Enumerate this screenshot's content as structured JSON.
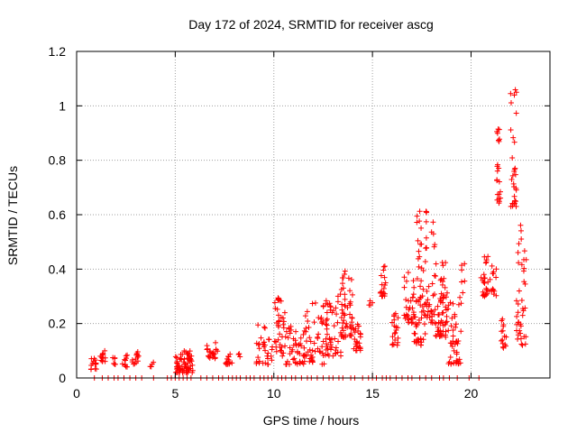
{
  "chart_data": {
    "type": "scatter",
    "title": "Day 172 of 2024, SRMTID for receiver ascg",
    "xlabel": "GPS time / hours",
    "ylabel": "SRMTID / TECUs",
    "xlim": [
      0,
      24
    ],
    "ylim": [
      0,
      1.2
    ],
    "xticks": [
      0,
      5,
      10,
      15,
      20
    ],
    "yticks": [
      0,
      0.2,
      0.4,
      0.6,
      0.8,
      1.0,
      1.2
    ],
    "xtick_labels": [
      "0",
      "5",
      "10",
      "15",
      "20"
    ],
    "ytick_labels": [
      "0",
      "0.2",
      "0.4",
      "0.6",
      "0.8",
      "1",
      "1.2"
    ],
    "grid": true,
    "marker": "+",
    "series": [
      {
        "name": "SRMTID",
        "color": "#ff0000",
        "clusters": [
          {
            "x": [
              0.7,
              1.0
            ],
            "y": [
              0.03,
              0.08
            ],
            "n": 14
          },
          {
            "x": [
              1.2,
              1.5
            ],
            "y": [
              0.06,
              0.1
            ],
            "n": 12
          },
          {
            "x": [
              1.8,
              2.0
            ],
            "y": [
              0.05,
              0.08
            ],
            "n": 6
          },
          {
            "x": [
              2.3,
              2.6
            ],
            "y": [
              0.04,
              0.1
            ],
            "n": 10
          },
          {
            "x": [
              2.8,
              3.2
            ],
            "y": [
              0.05,
              0.1
            ],
            "n": 14
          },
          {
            "x": [
              3.7,
              3.9
            ],
            "y": [
              0.04,
              0.06
            ],
            "n": 4
          },
          {
            "x": [
              5.0,
              5.9
            ],
            "y": [
              0.02,
              0.1
            ],
            "n": 70
          },
          {
            "x": [
              6.6,
              7.2
            ],
            "y": [
              0.07,
              0.13
            ],
            "n": 20
          },
          {
            "x": [
              7.5,
              7.9
            ],
            "y": [
              0.05,
              0.1
            ],
            "n": 14
          },
          {
            "x": [
              8.2,
              8.3
            ],
            "y": [
              0.07,
              0.09
            ],
            "n": 3
          },
          {
            "x": [
              9.1,
              9.9
            ],
            "y": [
              0.05,
              0.22
            ],
            "n": 30
          },
          {
            "x": [
              9.9,
              10.6
            ],
            "y": [
              0.08,
              0.3
            ],
            "n": 40
          },
          {
            "x": [
              10.6,
              11.5
            ],
            "y": [
              0.05,
              0.2
            ],
            "n": 40
          },
          {
            "x": [
              11.5,
              12.6
            ],
            "y": [
              0.05,
              0.28
            ],
            "n": 55
          },
          {
            "x": [
              12.6,
              13.5
            ],
            "y": [
              0.08,
              0.35
            ],
            "n": 55
          },
          {
            "x": [
              13.4,
              14.0
            ],
            "y": [
              0.15,
              0.4
            ],
            "n": 45
          },
          {
            "x": [
              14.0,
              14.4
            ],
            "y": [
              0.1,
              0.2
            ],
            "n": 25
          },
          {
            "x": [
              14.8,
              15.0
            ],
            "y": [
              0.26,
              0.3
            ],
            "n": 4
          },
          {
            "x": [
              15.4,
              15.7
            ],
            "y": [
              0.3,
              0.43
            ],
            "n": 18
          },
          {
            "x": [
              16.0,
              16.3
            ],
            "y": [
              0.12,
              0.25
            ],
            "n": 20
          },
          {
            "x": [
              16.6,
              17.1
            ],
            "y": [
              0.2,
              0.4
            ],
            "n": 30
          },
          {
            "x": [
              17.1,
              17.7
            ],
            "y": [
              0.12,
              0.62
            ],
            "n": 60
          },
          {
            "x": [
              17.7,
              18.2
            ],
            "y": [
              0.2,
              0.62
            ],
            "n": 40
          },
          {
            "x": [
              18.2,
              18.8
            ],
            "y": [
              0.15,
              0.45
            ],
            "n": 55
          },
          {
            "x": [
              18.8,
              19.5
            ],
            "y": [
              0.05,
              0.3
            ],
            "n": 45
          },
          {
            "x": [
              19.5,
              19.7
            ],
            "y": [
              0.3,
              0.42
            ],
            "n": 6
          },
          {
            "x": [
              20.5,
              20.9
            ],
            "y": [
              0.3,
              0.45
            ],
            "n": 25
          },
          {
            "x": [
              20.9,
              21.3
            ],
            "y": [
              0.3,
              0.42
            ],
            "n": 15
          },
          {
            "x": [
              21.3,
              21.5
            ],
            "y": [
              0.64,
              0.92
            ],
            "n": 22
          },
          {
            "x": [
              21.5,
              21.8
            ],
            "y": [
              0.1,
              0.22
            ],
            "n": 15
          },
          {
            "x": [
              22.0,
              22.3
            ],
            "y": [
              0.63,
              1.06
            ],
            "n": 30
          },
          {
            "x": [
              22.3,
              22.8
            ],
            "y": [
              0.12,
              0.57
            ],
            "n": 40
          }
        ],
        "baseline_points_x": [
          0.9,
          1.3,
          1.6,
          1.9,
          2.1,
          2.4,
          2.7,
          3.0,
          3.3,
          3.9,
          4.6,
          4.8,
          5.0,
          5.2,
          5.4,
          5.6,
          5.8,
          6.3,
          6.6,
          6.9,
          7.2,
          7.4,
          7.7,
          7.9,
          8.1,
          8.3,
          8.6,
          8.8,
          9.0,
          9.3,
          9.5,
          9.7,
          9.9,
          10.2,
          10.4,
          10.6,
          10.9,
          11.1,
          11.4,
          11.7,
          11.9,
          12.2,
          12.5,
          12.8,
          13.0,
          13.3,
          13.5,
          13.9,
          14.1,
          14.5,
          14.8,
          15.0,
          15.2,
          15.5,
          15.7,
          15.9,
          16.2,
          16.5,
          16.8,
          17.0,
          17.4,
          17.7,
          18.0,
          18.4,
          18.6,
          18.9,
          19.3,
          19.9,
          20.4
        ]
      }
    ]
  }
}
